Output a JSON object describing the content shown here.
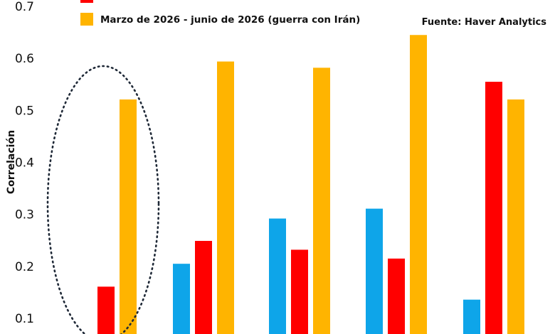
{
  "source": "Fuente: Haver Analytics",
  "chart_data": {
    "type": "bar",
    "ylabel": "Correlación",
    "ylim": [
      0.1,
      0.7
    ],
    "yticks": [
      "0.1",
      "0.2",
      "0.3",
      "0.4",
      "0.5",
      "0.6",
      "0.7"
    ],
    "legend_position": "top",
    "categories": [
      "",
      "",
      "",
      "",
      ""
    ],
    "series": [
      {
        "name": "",
        "color": "#0ea5e9",
        "values": [
          null,
          0.205,
          0.292,
          0.311,
          0.136
        ]
      },
      {
        "name": "",
        "color": "#ff0000",
        "values": [
          0.161,
          0.249,
          0.232,
          0.215,
          0.555
        ]
      },
      {
        "name": "Marzo de 2026 - junio de 2026 (guerra con Irán)",
        "color": "#ffb400",
        "values": [
          0.521,
          0.594,
          0.582,
          0.645,
          0.521
        ]
      }
    ],
    "annotations": [
      {
        "type": "dotted-ellipse",
        "category_index": 0
      }
    ]
  }
}
